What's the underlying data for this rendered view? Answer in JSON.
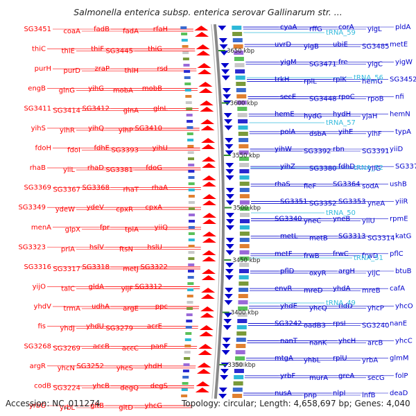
{
  "title": "Salmonella enterica subsp. enterica serovar Gallinarum str. ...",
  "footer": {
    "accession": "Accession: NC_011274",
    "details": "Topology: circular; Length: 4,658,697 bp; Genes: 4,040"
  },
  "colors": {
    "forward_strand": "#ff0000",
    "reverse_strand": "#0000cc",
    "rna": "#33bbdd",
    "backbone": "#888888",
    "position_tick": "#2a8a2a"
  },
  "scale_labels": [
    "3650 kbp",
    "3600 kbp",
    "3550 kbp",
    "3500 kbp",
    "3450 kbp",
    "3400 kbp",
    "3350 kbp"
  ],
  "left_genes": [
    "rfaH",
    "fadA",
    "fadB",
    "coaA",
    "SG3451",
    "thiG",
    "SG3445",
    "thiF",
    "thiE",
    "thiC",
    "rsd",
    "thiH",
    "zraP",
    "purD",
    "purH",
    "mobB",
    "mobA",
    "yihG",
    "glnG",
    "engB",
    "glnL",
    "glnA",
    "SG3412",
    "SG3414",
    "SG3411",
    "SG3410",
    "yihP",
    "yihQ",
    "yihR",
    "yihS",
    "yihU",
    "SG3393",
    "fdhE",
    "fdoI",
    "fdoH",
    "fdoG",
    "SG3381",
    "rhaD",
    "yiiL",
    "rhaB",
    "rhaA",
    "rhaT",
    "SG3368",
    "SG3367",
    "SG3369",
    "cpxA",
    "cpxR",
    "ydeV",
    "ydeW",
    "SG3349",
    "yiiQ",
    "tpiA",
    "fpr",
    "glpX",
    "menA",
    "hslU",
    "ftsN",
    "hslV",
    "priA",
    "SG3323",
    "SG3322",
    "metJ",
    "SG3318",
    "SG3317",
    "SG3316",
    "SG3312",
    "yijF",
    "gldA",
    "talC",
    "yijO",
    "ppc",
    "argE",
    "udhA",
    "trmA",
    "yhdV",
    "acrE",
    "SG3279",
    "yhdU",
    "yhdJ",
    "fis",
    "panF",
    "accC",
    "accB",
    "SG3269",
    "SG3268",
    "yhdH",
    "yhcS",
    "SG3252",
    "yhcN",
    "argR",
    "degS",
    "degQ",
    "yhcB",
    "SG3224",
    "codB",
    "yhcG",
    "gltD",
    "gltB",
    "yrbL",
    "yrbG"
  ],
  "right_genes": [
    "cyaA",
    "rffG",
    "corA",
    "yigL",
    "pldA",
    "uvrD",
    "yigB",
    "ubiE",
    "SG3485",
    "metE",
    "yigM",
    "SG3471",
    "fre",
    "yigC",
    "yigW",
    "trkH",
    "rplL",
    "rplK",
    "hemG",
    "SG3452",
    "secE",
    "SG3448",
    "rpoC",
    "rpoB",
    "nfi",
    "hemE",
    "hydG",
    "hydH",
    "yjaH",
    "hemN",
    "polA",
    "dsbA",
    "yihE",
    "yihF",
    "typA",
    "yihW",
    "SG3392",
    "rbn",
    "SG3391",
    "yiiD",
    "yihZ",
    "SG3380",
    "fdhD",
    "yiiG",
    "SG3370",
    "rhaS",
    "fieF",
    "SG3364",
    "sodA",
    "ushB",
    "SG3351",
    "SG3352",
    "SG3353",
    "yneA",
    "yiiR",
    "SG3340",
    "yneC",
    "yneB",
    "yiiU",
    "rpmE",
    "metL",
    "metB",
    "SG3313",
    "SG3314",
    "katG",
    "metF",
    "frwB",
    "frwC",
    "frwD",
    "pflC",
    "pflD",
    "oxyR",
    "argH",
    "yijC",
    "btuB",
    "envR",
    "mreD",
    "yhdA",
    "mreB",
    "cafA",
    "yhdE",
    "yhcQ",
    "tldD",
    "yhcP",
    "yhcO",
    "SG3242",
    "oadB3",
    "rpsI",
    "SG3240",
    "nanE",
    "nanT",
    "nanK",
    "yhcH",
    "arcB",
    "yhcC",
    "mtgA",
    "yhbL",
    "rplU",
    "yrbA",
    "glmM",
    "yrbF",
    "murA",
    "greA",
    "secG",
    "folP",
    "nusA",
    "pnp",
    "nlpI",
    "infB",
    "deaD"
  ],
  "rna_genes": [
    "tRNA_59",
    "tRNA_56",
    "tRNA_57",
    "tRNA_52",
    "tRNA_50",
    "tRNA_51",
    "tRNA_49"
  ]
}
